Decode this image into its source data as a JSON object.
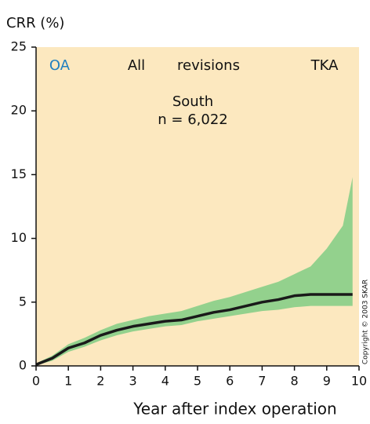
{
  "chart_data": {
    "type": "line",
    "y_label": "CRR (%)",
    "x_label": "Year after index operation",
    "annotations": [
      "OA",
      "All",
      "revisions",
      "TKA",
      "South",
      "n = 6,022"
    ],
    "copyright": "Copyright © 2003 SKAR",
    "background": "#fce8bf",
    "x": [
      0,
      0.5,
      1,
      1.5,
      2,
      2.5,
      3,
      3.5,
      4,
      4.5,
      5,
      5.5,
      6,
      6.5,
      7,
      7.5,
      8,
      8.5,
      9,
      9.5,
      9.8
    ],
    "series": [
      {
        "color": "#1a1a1a",
        "values": [
          0.1,
          0.6,
          1.4,
          1.8,
          2.4,
          2.8,
          3.1,
          3.3,
          3.5,
          3.6,
          3.9,
          4.2,
          4.4,
          4.7,
          5.0,
          5.2,
          5.5,
          5.6,
          5.6,
          5.6,
          5.6
        ]
      }
    ],
    "band": {
      "color": "#93d18d",
      "lower": [
        0.05,
        0.4,
        1.1,
        1.5,
        2.0,
        2.4,
        2.7,
        2.9,
        3.1,
        3.2,
        3.5,
        3.7,
        3.9,
        4.1,
        4.3,
        4.4,
        4.6,
        4.7,
        4.7,
        4.7,
        4.7
      ],
      "upper": [
        0.2,
        0.8,
        1.7,
        2.2,
        2.8,
        3.3,
        3.6,
        3.9,
        4.1,
        4.3,
        4.7,
        5.1,
        5.4,
        5.8,
        6.2,
        6.6,
        7.2,
        7.8,
        9.2,
        11.0,
        14.8
      ]
    },
    "xlim": [
      0,
      10
    ],
    "ylim": [
      0,
      25
    ],
    "xticks": [
      0,
      1,
      2,
      3,
      4,
      5,
      6,
      7,
      8,
      9,
      10
    ],
    "yticks": [
      0,
      5,
      10,
      15,
      20,
      25
    ]
  }
}
